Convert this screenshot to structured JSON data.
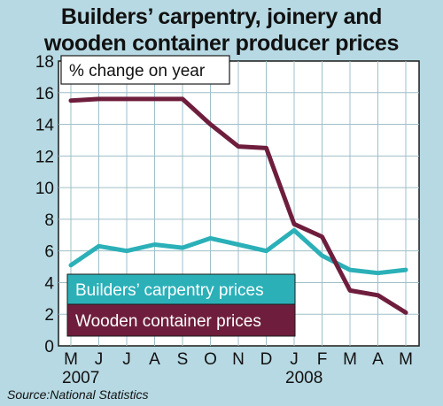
{
  "chart_data": {
    "type": "line",
    "title": "Builders’ carpentry, joinery and wooden container producer prices",
    "title_lines": [
      "Builders’ carpentry, joinery and",
      "wooden container producer prices"
    ],
    "subtitle": "% change on year",
    "x": [
      "M",
      "J",
      "J",
      "A",
      "S",
      "O",
      "N",
      "D",
      "J",
      "F",
      "M",
      "A",
      "M"
    ],
    "year_labels": [
      {
        "label": "2007",
        "at_index": 0
      },
      {
        "label": "2008",
        "at_index": 8
      }
    ],
    "ylim": [
      0,
      18
    ],
    "yticks": [
      0,
      2,
      4,
      6,
      8,
      10,
      12,
      14,
      16,
      18
    ],
    "grid": true,
    "legend_placement": "bottom-left",
    "series": [
      {
        "name": "Builders’ carpentry prices",
        "color": "#2bb0b8",
        "values": [
          5.1,
          6.3,
          6.0,
          6.4,
          6.2,
          6.8,
          6.4,
          6.0,
          7.3,
          5.7,
          4.8,
          4.6,
          4.8
        ]
      },
      {
        "name": "Wooden container prices",
        "color": "#6e1e3c",
        "values": [
          15.5,
          15.6,
          15.6,
          15.6,
          15.6,
          14.0,
          12.6,
          12.5,
          7.7,
          6.9,
          3.5,
          3.2,
          2.1
        ]
      }
    ]
  },
  "source": "Source:National Statistics"
}
